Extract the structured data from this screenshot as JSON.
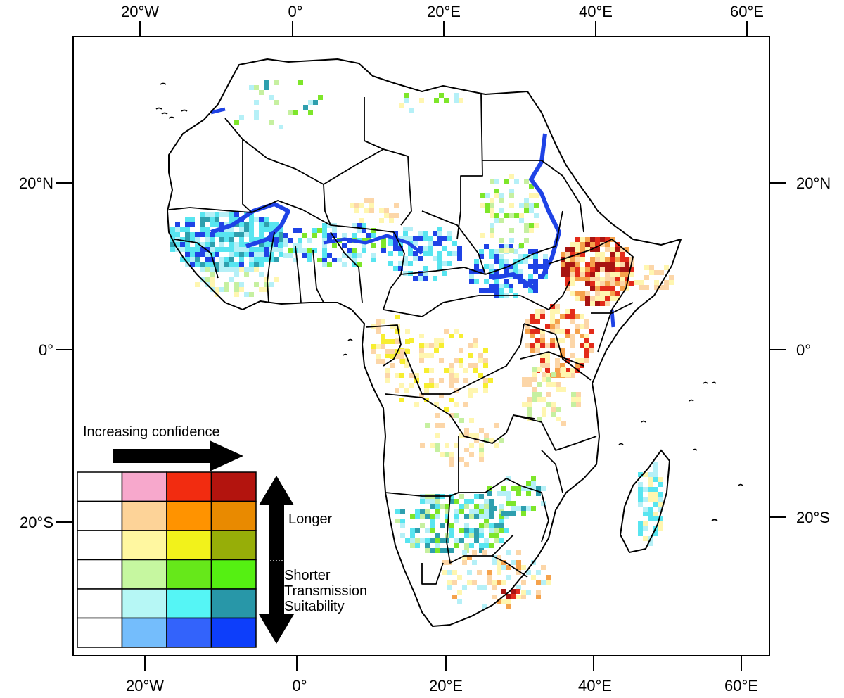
{
  "axes": {
    "top_labels": [
      "20°W",
      "0°",
      "20°E",
      "40°E",
      "60°E"
    ],
    "bottom_labels": [
      "20°W",
      "0°",
      "20°E",
      "40°E",
      "60°E"
    ],
    "left_labels": [
      "20°N",
      "0°",
      "20°S"
    ],
    "right_labels": [
      "20°N",
      "0°",
      "20°S"
    ]
  },
  "legend": {
    "confidence_label": "Increasing confidence",
    "longer_label": "Longer",
    "shorter_label": "Shorter",
    "transmission_label": "Transmission",
    "suitability_label": "Suitability",
    "grid_colors": [
      [
        "#ffffff",
        "#f7a8cc",
        "#f22c10",
        "#b3140e"
      ],
      [
        "#ffffff",
        "#fdd398",
        "#ff9300",
        "#e98a00"
      ],
      [
        "#ffffff",
        "#fff7a0",
        "#f2f21b",
        "#97ae08"
      ],
      [
        "#ffffff",
        "#c6f7a0",
        "#66e81a",
        "#55f012"
      ],
      [
        "#ffffff",
        "#b6f7f5",
        "#55f5f5",
        "#2897a8"
      ],
      [
        "#ffffff",
        "#74bdfc",
        "#3363fb",
        "#0d3efa"
      ]
    ]
  },
  "map_colors": {
    "blue": "#1f43e6",
    "light_blue": "#b5f0f7",
    "cyan": "#58e5f0",
    "teal": "#2e9fae",
    "green": "#7ee62a",
    "light_green": "#c6f0a0",
    "yellow": "#f7ee30",
    "light_yellow": "#fff6b0",
    "orange": "#f5a24c",
    "light_orange": "#fcd6a8",
    "red": "#e32b1a",
    "dark_red": "#a81412"
  }
}
